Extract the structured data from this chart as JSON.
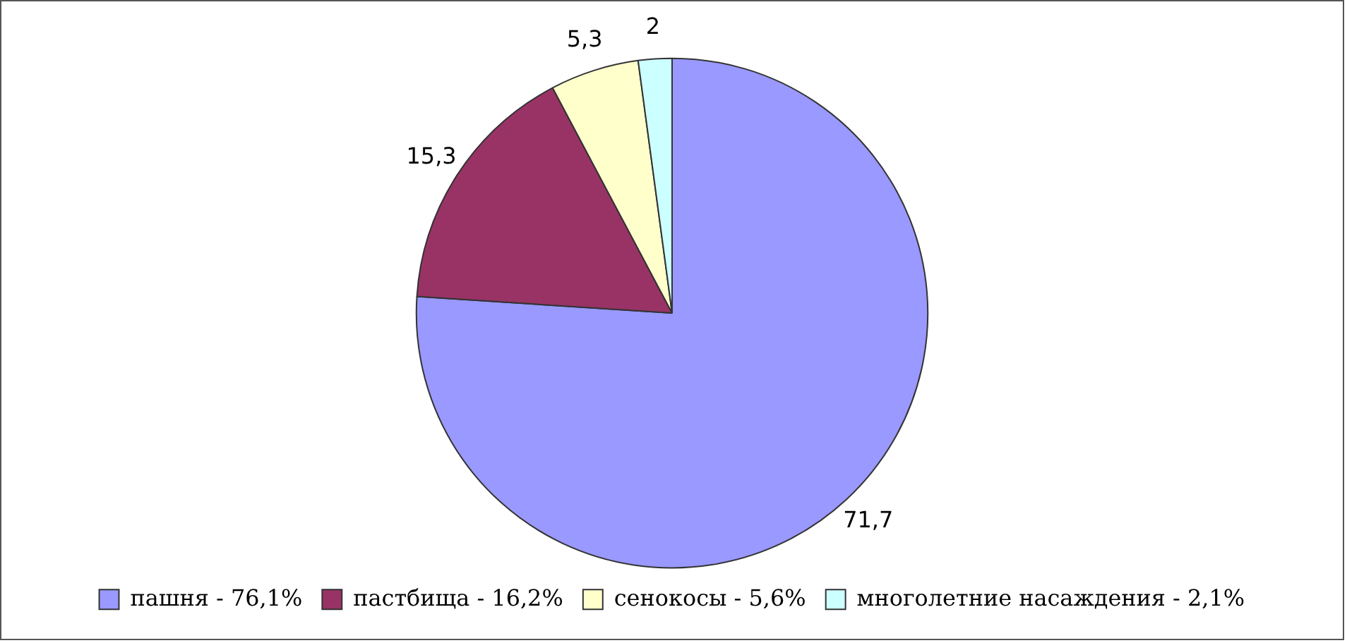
{
  "chart_data": {
    "type": "pie",
    "categories": [
      "пашня - 76,1%",
      "пастбища - 16,2%",
      "сенокосы - 5,6%",
      "многолетние насаждения - 2,1%"
    ],
    "values": [
      71.7,
      15.3,
      5.3,
      2
    ],
    "value_labels": [
      "71,7",
      "15,3",
      "5,3",
      "2"
    ],
    "colors": [
      "#9999ff",
      "#993366",
      "#ffffcc",
      "#ccffff"
    ],
    "legend": "bottom"
  }
}
